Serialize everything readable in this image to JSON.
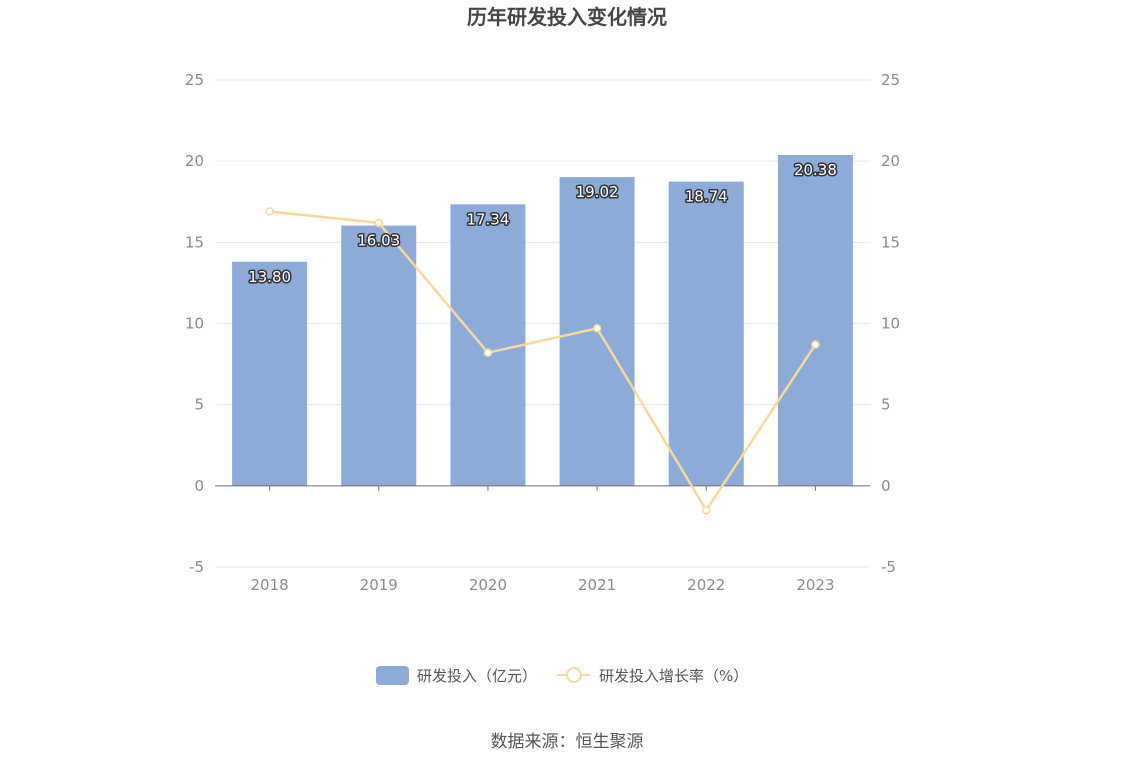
{
  "chart_data": {
    "type": "bar",
    "title": "历年研发投入变化情况",
    "categories": [
      "2018",
      "2019",
      "2020",
      "2021",
      "2022",
      "2023"
    ],
    "series": [
      {
        "name": "研发投入（亿元）",
        "type": "bar",
        "axis": "left",
        "values": [
          13.8,
          16.03,
          17.34,
          19.02,
          18.74,
          20.38
        ],
        "labels": [
          "13.80",
          "16.03",
          "17.34",
          "19.02",
          "18.74",
          "20.38"
        ],
        "color": "#8dabd9"
      },
      {
        "name": "研发投入增长率（%）",
        "type": "line",
        "axis": "right",
        "values": [
          16.9,
          16.2,
          8.2,
          9.7,
          -1.5,
          8.7
        ],
        "color": "#fbd899"
      }
    ],
    "y_left": {
      "min": -5,
      "max": 25,
      "ticks": [
        "-5",
        "0",
        "5",
        "10",
        "15",
        "20",
        "25"
      ]
    },
    "y_right": {
      "min": -5,
      "max": 25,
      "ticks": [
        "-5",
        "0",
        "5",
        "10",
        "15",
        "20",
        "25"
      ]
    },
    "grid": true,
    "legend_position": "bottom"
  },
  "source": "数据来源：恒生聚源",
  "colors": {
    "grid": "#e3e6f3",
    "axis": "#6e7079",
    "tick_text": "#8a8a8a"
  }
}
